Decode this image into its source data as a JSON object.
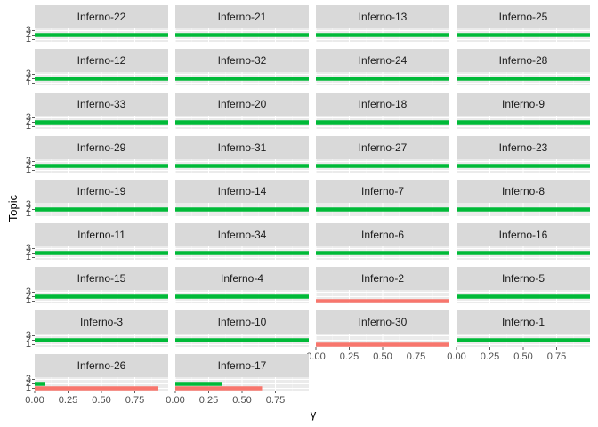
{
  "chart_data": {
    "type": "bar",
    "orientation": "horizontal",
    "faceted": true,
    "facet_columns": 4,
    "xlabel": "γ",
    "ylabel": "Topic",
    "xlim": [
      0,
      1
    ],
    "x_ticks": [
      "0.00",
      "0.25",
      "0.50",
      "0.75"
    ],
    "y_ticks": [
      "1",
      "2",
      "3"
    ],
    "grid": true,
    "colors": {
      "1": "#F8766D",
      "2": "#00BA38",
      "3": "#619CFF"
    },
    "facets": [
      {
        "label": "Inferno-22",
        "topics": [
          1,
          2,
          3
        ],
        "gamma": [
          0.0,
          1.0,
          0.0
        ]
      },
      {
        "label": "Inferno-21",
        "topics": [
          1,
          2,
          3
        ],
        "gamma": [
          0.0,
          1.0,
          0.0
        ]
      },
      {
        "label": "Inferno-13",
        "topics": [
          1,
          2,
          3
        ],
        "gamma": [
          0.0,
          1.0,
          0.0
        ]
      },
      {
        "label": "Inferno-25",
        "topics": [
          1,
          2,
          3
        ],
        "gamma": [
          0.0,
          1.0,
          0.0
        ]
      },
      {
        "label": "Inferno-12",
        "topics": [
          1,
          2,
          3
        ],
        "gamma": [
          0.0,
          1.0,
          0.0
        ]
      },
      {
        "label": "Inferno-32",
        "topics": [
          1,
          2,
          3
        ],
        "gamma": [
          0.0,
          1.0,
          0.0
        ]
      },
      {
        "label": "Inferno-24",
        "topics": [
          1,
          2,
          3
        ],
        "gamma": [
          0.0,
          1.0,
          0.0
        ]
      },
      {
        "label": "Inferno-28",
        "topics": [
          1,
          2,
          3
        ],
        "gamma": [
          0.0,
          1.0,
          0.0
        ]
      },
      {
        "label": "Inferno-33",
        "topics": [
          1,
          2,
          3
        ],
        "gamma": [
          0.0,
          1.0,
          0.0
        ]
      },
      {
        "label": "Inferno-20",
        "topics": [
          1,
          2,
          3
        ],
        "gamma": [
          0.0,
          1.0,
          0.0
        ]
      },
      {
        "label": "Inferno-18",
        "topics": [
          1,
          2,
          3
        ],
        "gamma": [
          0.0,
          1.0,
          0.0
        ]
      },
      {
        "label": "Inferno-9",
        "topics": [
          1,
          2,
          3
        ],
        "gamma": [
          0.0,
          1.0,
          0.0
        ]
      },
      {
        "label": "Inferno-29",
        "topics": [
          1,
          2,
          3
        ],
        "gamma": [
          0.0,
          1.0,
          0.0
        ]
      },
      {
        "label": "Inferno-31",
        "topics": [
          1,
          2,
          3
        ],
        "gamma": [
          0.0,
          1.0,
          0.0
        ]
      },
      {
        "label": "Inferno-27",
        "topics": [
          1,
          2,
          3
        ],
        "gamma": [
          0.0,
          1.0,
          0.0
        ]
      },
      {
        "label": "Inferno-23",
        "topics": [
          1,
          2,
          3
        ],
        "gamma": [
          0.0,
          1.0,
          0.0
        ]
      },
      {
        "label": "Inferno-19",
        "topics": [
          1,
          2,
          3
        ],
        "gamma": [
          0.0,
          1.0,
          0.0
        ]
      },
      {
        "label": "Inferno-14",
        "topics": [
          1,
          2,
          3
        ],
        "gamma": [
          0.0,
          1.0,
          0.0
        ]
      },
      {
        "label": "Inferno-7",
        "topics": [
          1,
          2,
          3
        ],
        "gamma": [
          0.0,
          1.0,
          0.0
        ]
      },
      {
        "label": "Inferno-8",
        "topics": [
          1,
          2,
          3
        ],
        "gamma": [
          0.0,
          1.0,
          0.0
        ]
      },
      {
        "label": "Inferno-11",
        "topics": [
          1,
          2,
          3
        ],
        "gamma": [
          0.0,
          1.0,
          0.0
        ]
      },
      {
        "label": "Inferno-34",
        "topics": [
          1,
          2,
          3
        ],
        "gamma": [
          0.0,
          1.0,
          0.0
        ]
      },
      {
        "label": "Inferno-6",
        "topics": [
          1,
          2,
          3
        ],
        "gamma": [
          0.0,
          1.0,
          0.0
        ]
      },
      {
        "label": "Inferno-16",
        "topics": [
          1,
          2,
          3
        ],
        "gamma": [
          0.0,
          1.0,
          0.0
        ]
      },
      {
        "label": "Inferno-15",
        "topics": [
          1,
          2,
          3
        ],
        "gamma": [
          0.0,
          1.0,
          0.0
        ]
      },
      {
        "label": "Inferno-4",
        "topics": [
          1,
          2,
          3
        ],
        "gamma": [
          0.0,
          1.0,
          0.0
        ]
      },
      {
        "label": "Inferno-2",
        "topics": [
          1,
          2,
          3
        ],
        "gamma": [
          1.0,
          0.0,
          0.0
        ]
      },
      {
        "label": "Inferno-5",
        "topics": [
          1,
          2,
          3
        ],
        "gamma": [
          0.0,
          1.0,
          0.0
        ]
      },
      {
        "label": "Inferno-3",
        "topics": [
          1,
          2,
          3
        ],
        "gamma": [
          0.0,
          1.0,
          0.0
        ]
      },
      {
        "label": "Inferno-10",
        "topics": [
          1,
          2,
          3
        ],
        "gamma": [
          0.0,
          1.0,
          0.0
        ]
      },
      {
        "label": "Inferno-30",
        "topics": [
          1,
          2,
          3
        ],
        "gamma": [
          1.0,
          0.0,
          0.0
        ]
      },
      {
        "label": "Inferno-1",
        "topics": [
          1,
          2,
          3
        ],
        "gamma": [
          0.0,
          1.0,
          0.0
        ]
      },
      {
        "label": "Inferno-26",
        "topics": [
          1,
          2,
          3
        ],
        "gamma": [
          0.92,
          0.08,
          0.0
        ]
      },
      {
        "label": "Inferno-17",
        "topics": [
          1,
          2,
          3
        ],
        "gamma": [
          0.65,
          0.35,
          0.0
        ]
      }
    ]
  }
}
